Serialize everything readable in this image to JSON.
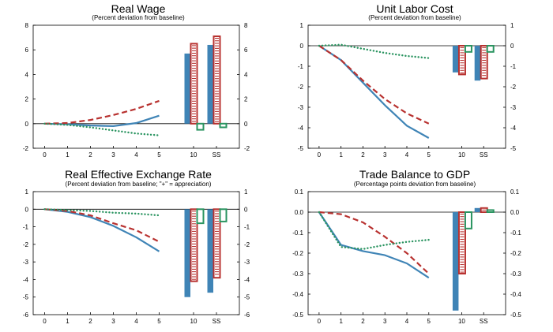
{
  "colors": {
    "blue": "#3f84b6",
    "red": "#b8312f",
    "green": "#2a9460"
  },
  "chart_data": [
    {
      "type": "line",
      "title": "Real Wage",
      "subtitle": "(Percent deviation from baseline)",
      "ylim": [
        -2,
        8
      ],
      "yticks": [
        "-2",
        "0",
        "2",
        "4",
        "6",
        "8"
      ],
      "ytick_values": [
        -2,
        0,
        2,
        4,
        6,
        8
      ],
      "x": [
        0,
        1,
        2,
        3,
        4,
        5
      ],
      "xticks": [
        "0",
        "1",
        "2",
        "3",
        "4",
        "5",
        "10",
        "SS"
      ],
      "series": [
        {
          "style": "solid",
          "color": "blue",
          "values": [
            0,
            -0.05,
            -0.15,
            -0.2,
            0.05,
            0.65
          ]
        },
        {
          "style": "dashed",
          "color": "red",
          "values": [
            0,
            0.05,
            0.3,
            0.7,
            1.2,
            1.85
          ]
        },
        {
          "style": "dotted",
          "color": "green",
          "values": [
            0,
            -0.1,
            -0.3,
            -0.55,
            -0.8,
            -0.95
          ]
        }
      ],
      "bars": [
        {
          "category": "10",
          "values": [
            5.7,
            6.5,
            -0.5
          ]
        },
        {
          "category": "SS",
          "values": [
            6.4,
            7.1,
            -0.3
          ]
        }
      ],
      "grid": false,
      "legend": "none"
    },
    {
      "type": "line",
      "title": "Unit Labor Cost",
      "subtitle": "(Percent deviation from baseline)",
      "ylim": [
        -5,
        1
      ],
      "yticks": [
        "-5",
        "-4",
        "-3",
        "-2",
        "-1",
        "0",
        "1"
      ],
      "ytick_values": [
        -5,
        -4,
        -3,
        -2,
        -1,
        0,
        1
      ],
      "x": [
        0,
        1,
        2,
        3,
        4,
        5
      ],
      "xticks": [
        "0",
        "1",
        "2",
        "3",
        "4",
        "5",
        "10",
        "SS"
      ],
      "series": [
        {
          "style": "solid",
          "color": "blue",
          "values": [
            0,
            -0.7,
            -1.8,
            -2.9,
            -3.9,
            -4.5
          ]
        },
        {
          "style": "dashed",
          "color": "red",
          "values": [
            0,
            -0.7,
            -1.7,
            -2.6,
            -3.3,
            -3.8
          ]
        },
        {
          "style": "dotted",
          "color": "green",
          "values": [
            0,
            0.05,
            -0.15,
            -0.35,
            -0.5,
            -0.6
          ]
        }
      ],
      "bars": [
        {
          "category": "10",
          "values": [
            -1.3,
            -1.4,
            -0.3
          ]
        },
        {
          "category": "SS",
          "values": [
            -1.7,
            -1.6,
            -0.3
          ]
        }
      ],
      "grid": false,
      "legend": "none"
    },
    {
      "type": "line",
      "title": "Real Effective Exchange Rate",
      "subtitle": "(Percent deviation from baseline; \"+\" = appreciation)",
      "ylim": [
        -6,
        1
      ],
      "yticks": [
        "-6",
        "-5",
        "-4",
        "-3",
        "-2",
        "-1",
        "0",
        "1"
      ],
      "ytick_values": [
        -6,
        -5,
        -4,
        -3,
        -2,
        -1,
        0,
        1
      ],
      "x": [
        0,
        1,
        2,
        3,
        4,
        5
      ],
      "xticks": [
        "0",
        "1",
        "2",
        "3",
        "4",
        "5",
        "10",
        "SS"
      ],
      "series": [
        {
          "style": "solid",
          "color": "blue",
          "values": [
            0,
            -0.15,
            -0.45,
            -0.95,
            -1.6,
            -2.4
          ]
        },
        {
          "style": "dashed",
          "color": "red",
          "values": [
            0,
            -0.1,
            -0.35,
            -0.8,
            -1.2,
            -1.85
          ]
        },
        {
          "style": "dotted",
          "color": "green",
          "values": [
            0,
            -0.05,
            -0.1,
            -0.2,
            -0.25,
            -0.35
          ]
        }
      ],
      "bars": [
        {
          "category": "10",
          "values": [
            -5.0,
            -4.1,
            -0.8
          ]
        },
        {
          "category": "SS",
          "values": [
            -4.75,
            -3.9,
            -0.7
          ]
        }
      ],
      "grid": false,
      "legend": "none"
    },
    {
      "type": "line",
      "title": "Trade Balance to GDP",
      "subtitle": "(Percentage points deviation from baseline)",
      "ylim": [
        -0.5,
        0.1
      ],
      "yticks": [
        "-0.5",
        "-0.4",
        "-0.3",
        "-0.2",
        "-0.1",
        "0.0",
        "0.1"
      ],
      "ytick_values": [
        -0.5,
        -0.4,
        -0.3,
        -0.2,
        -0.1,
        0.0,
        0.1
      ],
      "x": [
        0,
        1,
        2,
        3,
        4,
        5
      ],
      "xticks": [
        "0",
        "1",
        "2",
        "3",
        "4",
        "5",
        "10",
        "SS"
      ],
      "series": [
        {
          "style": "solid",
          "color": "blue",
          "values": [
            0,
            -0.16,
            -0.19,
            -0.21,
            -0.25,
            -0.32
          ]
        },
        {
          "style": "dashed",
          "color": "red",
          "values": [
            0,
            -0.01,
            -0.05,
            -0.12,
            -0.2,
            -0.3
          ]
        },
        {
          "style": "dotted",
          "color": "green",
          "values": [
            0,
            -0.17,
            -0.18,
            -0.16,
            -0.145,
            -0.135
          ]
        }
      ],
      "bars": [
        {
          "category": "10",
          "values": [
            -0.48,
            -0.3,
            -0.08
          ]
        },
        {
          "category": "SS",
          "values": [
            0.02,
            0.02,
            0.01
          ]
        }
      ],
      "grid": false,
      "legend": "none"
    }
  ]
}
